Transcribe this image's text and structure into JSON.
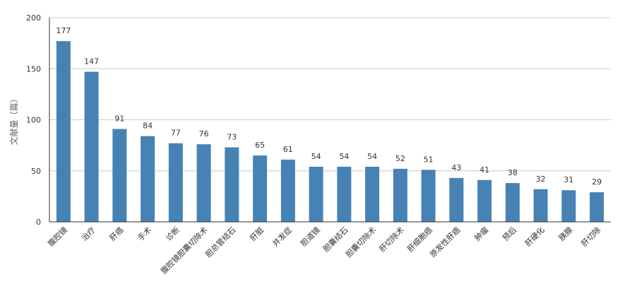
{
  "chart_data": {
    "type": "bar",
    "title": "",
    "xlabel": "",
    "ylabel": "文献量（篇）",
    "ylim": [
      0,
      200
    ],
    "yticks": [
      0,
      50,
      100,
      150,
      200
    ],
    "grid": true,
    "legend": "none",
    "bar_color": "#4682b4",
    "categories": [
      "腹腔镜",
      "治疗",
      "肝癌",
      "手术",
      "诊断",
      "腹腔镜胆囊切除术",
      "胆总管结石",
      "肝脏",
      "并发症",
      "胆道镜",
      "胆囊结石",
      "胆囊切除术",
      "肝切除术",
      "肝细胞癌",
      "原发性肝癌",
      "肿瘤",
      "预后",
      "肝硬化",
      "胰腺",
      "肝切除"
    ],
    "values": [
      177,
      147,
      91,
      84,
      77,
      76,
      73,
      65,
      61,
      54,
      54,
      54,
      52,
      51,
      43,
      41,
      38,
      32,
      31,
      29
    ]
  }
}
